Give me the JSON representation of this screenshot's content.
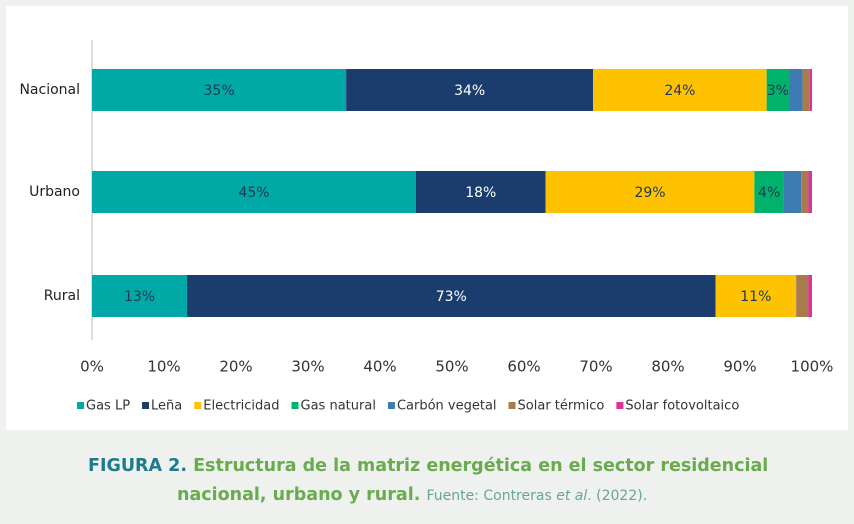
{
  "chart_data": {
    "type": "stacked_barh",
    "categories": [
      "Nacional",
      "Urbano",
      "Rural"
    ],
    "series": [
      {
        "name": "Gas LP",
        "color": "#00a9a5",
        "values": [
          35.3,
          45,
          13.2
        ],
        "value_labels": [
          "35%",
          "45%",
          "13%"
        ]
      },
      {
        "name": "Leña",
        "color": "#1b3d6e",
        "values": [
          34.3,
          18,
          73.4
        ],
        "value_labels": [
          "34%",
          "18%",
          "73%"
        ]
      },
      {
        "name": "Electricidad",
        "color": "#ffc200",
        "values": [
          24.1,
          29,
          11.2
        ],
        "value_labels": [
          "24%",
          "29%",
          "11%"
        ]
      },
      {
        "name": "Gas natural",
        "color": "#00b26b",
        "values": [
          3.1,
          4.1,
          0
        ],
        "value_labels": [
          "3%",
          "4%",
          null
        ]
      },
      {
        "name": "Carbón vegetal",
        "color": "#3f7bb3",
        "values": [
          1.9,
          2.4,
          0
        ]
      },
      {
        "name": "Solar térmico",
        "color": "#a87a4c",
        "values": [
          1.0,
          1.0,
          1.7
        ]
      },
      {
        "name": "Solar fotovoltaico",
        "color": "#e0309a",
        "values": [
          0.3,
          0.5,
          0.5
        ]
      }
    ],
    "xlim": [
      0,
      100
    ],
    "xticks": [
      {
        "value": 0,
        "label": "0%"
      },
      {
        "value": 10,
        "label": "10%"
      },
      {
        "value": 20,
        "label": "20%"
      },
      {
        "value": 30,
        "label": "30%"
      },
      {
        "value": 40,
        "label": "40%"
      },
      {
        "value": 50,
        "label": "50%"
      },
      {
        "value": 60,
        "label": "60%"
      },
      {
        "value": 70,
        "label": "70%"
      },
      {
        "value": 80,
        "label": "80%"
      },
      {
        "value": 90,
        "label": "90%"
      },
      {
        "value": 100,
        "label": "100%"
      }
    ],
    "legend": "bottom",
    "caption_label": "FIGURA 2.",
    "caption": "Estructura de la matriz energética en el sector residencial nacional, urbano y rural.",
    "source": [
      "Fuente: Contreras ",
      "et al",
      ". (2022)."
    ]
  }
}
